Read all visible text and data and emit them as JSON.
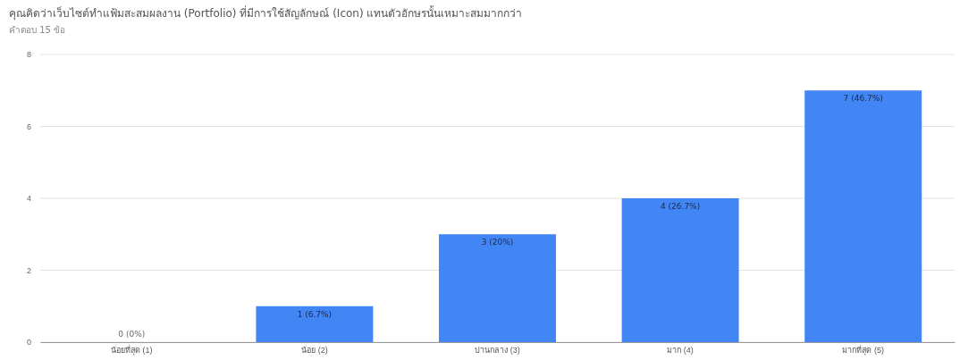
{
  "chart_data": {
    "type": "bar",
    "title": "คุณคิดว่าเว็บไซต์ทำแฟ้มสะสมผลงาน (Portfolio) ที่มีการใช้สัญลักษณ์ (Icon) แทนตัวอักษรนั้นเหมาะสมมากกว่า",
    "subtitle": "คำตอบ 15 ข้อ",
    "categories": [
      "น้อยที่สุด (1)",
      "น้อย (2)",
      "ปานกลาง (3)",
      "มาก (4)",
      "มากที่สุด (5)"
    ],
    "values": [
      0,
      1,
      3,
      4,
      7
    ],
    "value_labels": [
      "0 (0%)",
      "1 (6.7%)",
      "3 (20%)",
      "4 (26.7%)",
      "7 (46.7%)"
    ],
    "color": "#4285f4",
    "ylim": [
      0,
      8
    ],
    "yticks": [
      0,
      2,
      4,
      6,
      8
    ],
    "grid": "y"
  }
}
